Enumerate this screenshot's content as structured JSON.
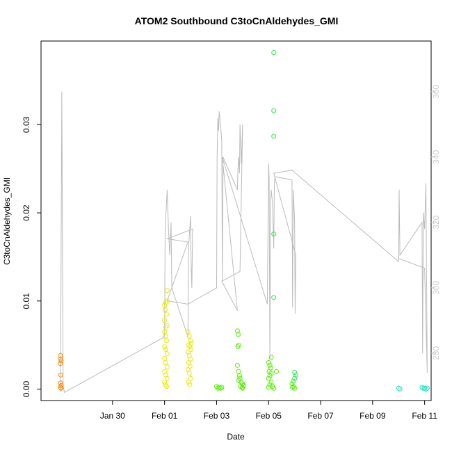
{
  "chart_data": {
    "type": "scatter",
    "title": "ATOM2 Southbound C3toCnAldehydes_GMI",
    "xlabel": "Date",
    "ylabel": "C3toCnAldehydes_GMI",
    "x_unit": "days (Jan 29 = 0)",
    "xlim": [
      -1.75,
      13.25
    ],
    "ylim": [
      -0.0013,
      0.0395
    ],
    "x_ticks": [
      {
        "value": 1,
        "label": "Jan 30"
      },
      {
        "value": 3,
        "label": "Feb 01"
      },
      {
        "value": 5,
        "label": "Feb 03"
      },
      {
        "value": 7,
        "label": "Feb 05"
      },
      {
        "value": 9,
        "label": "Feb 07"
      },
      {
        "value": 11,
        "label": "Feb 09"
      },
      {
        "value": 13,
        "label": "Feb 11"
      }
    ],
    "y_ticks": [
      {
        "value": 0.0,
        "label": "0.00"
      },
      {
        "value": 0.01,
        "label": "0.01"
      },
      {
        "value": 0.02,
        "label": "0.02"
      },
      {
        "value": 0.03,
        "label": "0.03"
      }
    ],
    "y2_lim": [
      265.5,
      375.5
    ],
    "y2_ticks": [
      {
        "value": 280,
        "label": "280"
      },
      {
        "value": 300,
        "label": "300"
      },
      {
        "value": 320,
        "label": "320"
      },
      {
        "value": 340,
        "label": "340"
      },
      {
        "value": 360,
        "label": "360"
      }
    ],
    "series": [
      {
        "color": "#ff8c00",
        "points": [
          [
            -1.0,
            0.0038
          ],
          [
            -1.0,
            0.0034
          ],
          [
            -0.98,
            0.0032
          ],
          [
            -1.0,
            0.0029
          ],
          [
            -0.99,
            0.0016
          ],
          [
            -1.0,
            0.0007
          ],
          [
            -0.98,
            0.0004
          ],
          [
            -1.0,
            0.0002
          ],
          [
            -0.98,
            0.0001
          ]
        ]
      },
      {
        "color": "#e8e800",
        "points": [
          [
            3.0,
            0.0095
          ],
          [
            3.05,
            0.0098
          ],
          [
            3.1,
            0.01
          ],
          [
            3.02,
            0.009
          ],
          [
            3.08,
            0.0085
          ],
          [
            3.0,
            0.0078
          ],
          [
            3.05,
            0.007
          ],
          [
            3.1,
            0.0072
          ],
          [
            3.0,
            0.0065
          ],
          [
            3.03,
            0.006
          ],
          [
            3.08,
            0.0055
          ],
          [
            3.0,
            0.0048
          ],
          [
            3.05,
            0.0045
          ],
          [
            3.1,
            0.004
          ],
          [
            3.0,
            0.0035
          ],
          [
            3.04,
            0.003
          ],
          [
            3.1,
            0.0025
          ],
          [
            3.0,
            0.002
          ],
          [
            3.05,
            0.0016
          ],
          [
            3.1,
            0.0012
          ],
          [
            3.0,
            0.0008
          ],
          [
            3.03,
            0.0005
          ],
          [
            3.08,
            0.0003
          ],
          [
            3.1,
            0.0112
          ],
          [
            3.9,
            0.0065
          ],
          [
            3.95,
            0.006
          ],
          [
            4.0,
            0.0055
          ],
          [
            3.92,
            0.005
          ],
          [
            3.97,
            0.0048
          ],
          [
            4.02,
            0.0045
          ],
          [
            3.9,
            0.0042
          ],
          [
            3.95,
            0.0038
          ],
          [
            4.0,
            0.0034
          ],
          [
            3.93,
            0.003
          ],
          [
            3.98,
            0.0026
          ],
          [
            3.9,
            0.0022
          ],
          [
            3.95,
            0.0018
          ],
          [
            4.0,
            0.0012
          ],
          [
            3.92,
            0.0008
          ],
          [
            3.97,
            0.0005
          ],
          [
            4.02,
            0.0052
          ]
        ]
      },
      {
        "color": "#55ee00",
        "points": [
          [
            5.0,
            0.0003
          ],
          [
            5.05,
            0.0001
          ],
          [
            5.1,
            0.0002
          ],
          [
            5.15,
            0.0001
          ],
          [
            5.2,
            0.0002
          ],
          [
            5.8,
            0.0066
          ],
          [
            5.83,
            0.0062
          ],
          [
            5.85,
            0.005
          ],
          [
            5.82,
            0.0048
          ],
          [
            5.8,
            0.0027
          ],
          [
            5.84,
            0.002
          ],
          [
            5.88,
            0.0015
          ],
          [
            5.9,
            0.0012
          ],
          [
            5.85,
            0.001
          ],
          [
            5.95,
            0.0008
          ],
          [
            6.0,
            0.0006
          ],
          [
            6.05,
            0.0004
          ],
          [
            5.92,
            0.0003
          ],
          [
            5.98,
            0.0002
          ],
          [
            6.0,
            0.0001
          ],
          [
            7.0,
            0.003
          ],
          [
            7.05,
            0.0027
          ],
          [
            7.08,
            0.0024
          ],
          [
            7.02,
            0.002
          ],
          [
            7.1,
            0.0018
          ],
          [
            7.05,
            0.0015
          ],
          [
            7.0,
            0.0012
          ],
          [
            7.1,
            0.0008
          ],
          [
            7.05,
            0.0005
          ],
          [
            7.15,
            0.0003
          ],
          [
            7.0,
            0.0002
          ],
          [
            7.2,
            0.0001
          ],
          [
            7.1,
            0.0036
          ],
          [
            7.3,
            0.002
          ],
          [
            7.9,
            0.0006
          ],
          [
            7.95,
            0.0003
          ],
          [
            8.0,
            0.0001
          ],
          [
            7.92,
            0.0002
          ]
        ]
      },
      {
        "color": "#22ee44",
        "points": [
          [
            7.2,
            0.0382
          ],
          [
            7.2,
            0.0316
          ],
          [
            7.2,
            0.0287
          ],
          [
            7.2,
            0.0176
          ],
          [
            7.2,
            0.0104
          ],
          [
            8.0,
            0.0019
          ],
          [
            8.05,
            0.0016
          ],
          [
            8.0,
            0.0012
          ],
          [
            7.95,
            0.0009
          ]
        ]
      },
      {
        "color": "#22e6c8",
        "points": [
          [
            12.0,
            0.0001
          ],
          [
            12.05,
            0.0
          ],
          [
            12.9,
            0.0002
          ],
          [
            12.95,
            0.0001
          ],
          [
            13.0,
            0.0001
          ],
          [
            13.05,
            0.0
          ],
          [
            13.1,
            0.0001
          ]
        ]
      }
    ],
    "line_series": {
      "color": "#bbbbbb",
      "axis": "right",
      "points": [
        [
          -1.0,
          268
        ],
        [
          -0.95,
          360
        ],
        [
          -0.9,
          270
        ],
        [
          -0.85,
          268
        ],
        [
          3.0,
          285
        ],
        [
          3.02,
          315
        ],
        [
          3.05,
          322
        ],
        [
          3.1,
          330
        ],
        [
          3.15,
          318
        ],
        [
          3.2,
          310
        ],
        [
          3.25,
          320
        ],
        [
          3.28,
          300
        ],
        [
          3.9,
          285
        ],
        [
          3.92,
          312
        ],
        [
          3.95,
          316
        ],
        [
          4.0,
          322
        ],
        [
          4.02,
          308
        ],
        [
          4.05,
          300
        ],
        [
          4.08,
          318
        ],
        [
          3.1,
          315
        ],
        [
          3.9,
          314
        ],
        [
          3.1,
          296
        ],
        [
          3.9,
          295
        ],
        [
          5.0,
          300
        ],
        [
          5.02,
          340
        ],
        [
          5.05,
          352
        ],
        [
          5.08,
          348
        ],
        [
          5.1,
          354
        ],
        [
          5.15,
          350
        ],
        [
          5.2,
          345
        ],
        [
          5.22,
          302
        ],
        [
          5.25,
          340
        ],
        [
          5.8,
          330
        ],
        [
          5.82,
          336
        ],
        [
          5.85,
          340
        ],
        [
          5.88,
          335
        ],
        [
          5.9,
          350
        ],
        [
          5.95,
          338
        ],
        [
          6.0,
          350
        ],
        [
          5.9,
          305
        ],
        [
          5.2,
          302
        ],
        [
          5.8,
          293
        ],
        [
          5.22,
          340
        ],
        [
          6.95,
          295
        ],
        [
          7.0,
          338
        ],
        [
          7.02,
          334
        ],
        [
          7.05,
          278
        ],
        [
          7.08,
          325
        ],
        [
          7.1,
          330
        ],
        [
          7.15,
          326
        ],
        [
          7.2,
          312
        ],
        [
          7.22,
          332
        ],
        [
          7.25,
          334
        ],
        [
          7.9,
          333
        ],
        [
          7.92,
          294
        ],
        [
          7.95,
          330
        ],
        [
          8.0,
          320
        ],
        [
          8.02,
          292
        ],
        [
          8.05,
          310
        ],
        [
          7.2,
          335
        ],
        [
          7.9,
          336
        ],
        [
          12.0,
          308
        ],
        [
          12.02,
          330
        ],
        [
          12.05,
          310
        ],
        [
          12.9,
          320
        ],
        [
          12.92,
          280
        ],
        [
          12.95,
          323
        ],
        [
          13.0,
          318
        ],
        [
          13.05,
          332
        ],
        [
          13.1,
          274
        ],
        [
          13.0,
          306
        ],
        [
          12.0,
          309
        ]
      ]
    }
  }
}
